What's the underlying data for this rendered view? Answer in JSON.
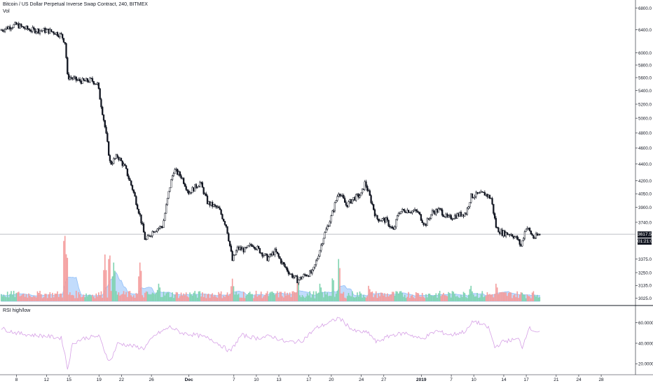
{
  "header": {
    "symbol_title": "Bitcoin / US Dollar Perpetual Inverse Swap Contract, 240, BITMEX",
    "volume_label": "Vol",
    "rsi_label": "RSI high/low"
  },
  "price_tags": {
    "last_price": "3617.5",
    "countdown": "01:21:07"
  },
  "colors": {
    "candle": "#131722",
    "vol_up": "#7fd3b0",
    "vol_down": "#f49c9c",
    "vol_ma": "#90bff9",
    "rsi_line": "#d6a0e6",
    "price_line": "#9598a1",
    "axis_text": "#131722",
    "separator": "#131722"
  },
  "chart_data": [
    {
      "type": "candlestick",
      "name": "price",
      "y_scale": "log",
      "ylim": [
        3000,
        6900
      ],
      "y_ticks": [
        "6800.0",
        "6400.0",
        "6000.0",
        "5800.0",
        "5600.0",
        "5400.0",
        "5200.0",
        "5000.0",
        "4800.0",
        "4600.0",
        "4400.0",
        "4200.0",
        "4050.0",
        "3900.0",
        "3740.0",
        "3617.5",
        "3375.0",
        "3250.0",
        "3135.0",
        "3025.0"
      ],
      "x_ticks": [
        {
          "day": 8,
          "label": "8"
        },
        {
          "day": 12,
          "label": "12"
        },
        {
          "day": 15,
          "label": "15"
        },
        {
          "day": 19,
          "label": "19"
        },
        {
          "day": 22,
          "label": "22"
        },
        {
          "day": 26,
          "label": "26"
        },
        {
          "day": 31,
          "label": "Dec"
        },
        {
          "day": 37,
          "label": "7"
        },
        {
          "day": 40,
          "label": "10"
        },
        {
          "day": 43,
          "label": "13"
        },
        {
          "day": 47,
          "label": "17"
        },
        {
          "day": 50,
          "label": "20"
        },
        {
          "day": 54,
          "label": "24"
        },
        {
          "day": 57,
          "label": "27"
        },
        {
          "day": 62,
          "label": "2019"
        },
        {
          "day": 66,
          "label": "7"
        },
        {
          "day": 69,
          "label": "10"
        },
        {
          "day": 73,
          "label": "14"
        },
        {
          "day": 76,
          "label": "17"
        },
        {
          "day": 80,
          "label": "21"
        },
        {
          "day": 83,
          "label": "24"
        },
        {
          "day": 86,
          "label": "28"
        }
      ],
      "xlim": [
        5.8,
        90.2
      ],
      "last_price": 3617.5,
      "anchors": [
        {
          "day": 5.8,
          "close": 6390
        },
        {
          "day": 7,
          "close": 6450
        },
        {
          "day": 8,
          "close": 6490
        },
        {
          "day": 9,
          "close": 6430
        },
        {
          "day": 10,
          "close": 6395
        },
        {
          "day": 11,
          "close": 6390
        },
        {
          "day": 12,
          "close": 6385
        },
        {
          "day": 13,
          "close": 6360
        },
        {
          "day": 14,
          "close": 6300
        },
        {
          "day": 14.5,
          "close": 6170
        },
        {
          "day": 14.8,
          "close": 5620
        },
        {
          "day": 16,
          "close": 5560
        },
        {
          "day": 17,
          "close": 5540
        },
        {
          "day": 18,
          "close": 5560
        },
        {
          "day": 18.8,
          "close": 5500
        },
        {
          "day": 19.8,
          "close": 4880
        },
        {
          "day": 20.5,
          "close": 4400
        },
        {
          "day": 21.5,
          "close": 4500
        },
        {
          "day": 22.5,
          "close": 4350
        },
        {
          "day": 23.5,
          "close": 4100
        },
        {
          "day": 24.5,
          "close": 3800
        },
        {
          "day": 25.2,
          "close": 3550
        },
        {
          "day": 26.3,
          "close": 3660
        },
        {
          "day": 27.5,
          "close": 3700
        },
        {
          "day": 28.5,
          "close": 4150
        },
        {
          "day": 29,
          "close": 4330
        },
        {
          "day": 30,
          "close": 4250
        },
        {
          "day": 31,
          "close": 4060
        },
        {
          "day": 32.5,
          "close": 4180
        },
        {
          "day": 33.5,
          "close": 3950
        },
        {
          "day": 35,
          "close": 3880
        },
        {
          "day": 36,
          "close": 3700
        },
        {
          "day": 36.8,
          "close": 3360
        },
        {
          "day": 37.5,
          "close": 3480
        },
        {
          "day": 38.5,
          "close": 3460
        },
        {
          "day": 39.5,
          "close": 3520
        },
        {
          "day": 40.5,
          "close": 3450
        },
        {
          "day": 41.5,
          "close": 3380
        },
        {
          "day": 42.5,
          "close": 3450
        },
        {
          "day": 43.5,
          "close": 3330
        },
        {
          "day": 44.5,
          "close": 3240
        },
        {
          "day": 45.5,
          "close": 3180
        },
        {
          "day": 46.5,
          "close": 3230
        },
        {
          "day": 47.5,
          "close": 3250
        },
        {
          "day": 48.2,
          "close": 3400
        },
        {
          "day": 49,
          "close": 3600
        },
        {
          "day": 50,
          "close": 3800
        },
        {
          "day": 51,
          "close": 4080
        },
        {
          "day": 52,
          "close": 3920
        },
        {
          "day": 53,
          "close": 4000
        },
        {
          "day": 54,
          "close": 4040
        },
        {
          "day": 54.5,
          "close": 4180
        },
        {
          "day": 55.5,
          "close": 3920
        },
        {
          "day": 56,
          "close": 3780
        },
        {
          "day": 57.3,
          "close": 3760
        },
        {
          "day": 58.3,
          "close": 3650
        },
        {
          "day": 59,
          "close": 3850
        },
        {
          "day": 60,
          "close": 3870
        },
        {
          "day": 61.5,
          "close": 3850
        },
        {
          "day": 62.5,
          "close": 3710
        },
        {
          "day": 63.5,
          "close": 3850
        },
        {
          "day": 64.5,
          "close": 3870
        },
        {
          "day": 65.5,
          "close": 3780
        },
        {
          "day": 67,
          "close": 3820
        },
        {
          "day": 68,
          "close": 3840
        },
        {
          "day": 68.6,
          "close": 4020
        },
        {
          "day": 69.5,
          "close": 4040
        },
        {
          "day": 70.5,
          "close": 4050
        },
        {
          "day": 71.3,
          "close": 4000
        },
        {
          "day": 72,
          "close": 3680
        },
        {
          "day": 72.8,
          "close": 3630
        },
        {
          "day": 74,
          "close": 3620
        },
        {
          "day": 74.8,
          "close": 3570
        },
        {
          "day": 75.3,
          "close": 3500
        },
        {
          "day": 76,
          "close": 3700
        },
        {
          "day": 77,
          "close": 3580
        },
        {
          "day": 77.8,
          "close": 3617.5
        }
      ]
    },
    {
      "type": "bar",
      "name": "volume",
      "spikes": [
        {
          "day": 14.4,
          "rel": 1.0
        },
        {
          "day": 14.7,
          "rel": 0.72
        },
        {
          "day": 19.8,
          "rel": 0.62
        },
        {
          "day": 20.4,
          "rel": 0.7
        },
        {
          "day": 21.0,
          "rel": 0.55
        },
        {
          "day": 24.5,
          "rel": 0.55
        },
        {
          "day": 27.0,
          "rel": 0.25
        },
        {
          "day": 36.8,
          "rel": 0.3
        },
        {
          "day": 45.5,
          "rel": 0.35
        },
        {
          "day": 48.5,
          "rel": 0.25
        },
        {
          "day": 50.2,
          "rel": 0.35
        },
        {
          "day": 51.0,
          "rel": 0.6
        },
        {
          "day": 55.0,
          "rel": 0.22
        },
        {
          "day": 68.6,
          "rel": 0.22
        },
        {
          "day": 72.0,
          "rel": 0.25
        }
      ]
    },
    {
      "type": "line",
      "name": "rsi",
      "ylim": [
        10,
        70
      ],
      "y_ticks": [
        "60.0000",
        "40.0000",
        "20.0000"
      ],
      "anchors": [
        {
          "day": 5.8,
          "value": 55
        },
        {
          "day": 8,
          "value": 50
        },
        {
          "day": 10,
          "value": 48
        },
        {
          "day": 12,
          "value": 47
        },
        {
          "day": 14,
          "value": 45
        },
        {
          "day": 14.5,
          "value": 28
        },
        {
          "day": 14.8,
          "value": 15
        },
        {
          "day": 15.5,
          "value": 40
        },
        {
          "day": 17,
          "value": 45
        },
        {
          "day": 19,
          "value": 47
        },
        {
          "day": 20,
          "value": 28
        },
        {
          "day": 20.5,
          "value": 22
        },
        {
          "day": 21.5,
          "value": 40
        },
        {
          "day": 23,
          "value": 38
        },
        {
          "day": 25,
          "value": 35
        },
        {
          "day": 26.5,
          "value": 48
        },
        {
          "day": 28.5,
          "value": 56
        },
        {
          "day": 30,
          "value": 50
        },
        {
          "day": 32,
          "value": 48
        },
        {
          "day": 34,
          "value": 44
        },
        {
          "day": 36.5,
          "value": 32
        },
        {
          "day": 38,
          "value": 48
        },
        {
          "day": 40,
          "value": 45
        },
        {
          "day": 42,
          "value": 47
        },
        {
          "day": 44,
          "value": 41
        },
        {
          "day": 46,
          "value": 42
        },
        {
          "day": 48,
          "value": 55
        },
        {
          "day": 50,
          "value": 61
        },
        {
          "day": 51,
          "value": 65
        },
        {
          "day": 53,
          "value": 52
        },
        {
          "day": 55,
          "value": 50
        },
        {
          "day": 56,
          "value": 41
        },
        {
          "day": 58,
          "value": 48
        },
        {
          "day": 60,
          "value": 50
        },
        {
          "day": 62,
          "value": 44
        },
        {
          "day": 64,
          "value": 52
        },
        {
          "day": 66,
          "value": 48
        },
        {
          "day": 68,
          "value": 52
        },
        {
          "day": 69,
          "value": 62
        },
        {
          "day": 71,
          "value": 55
        },
        {
          "day": 71.8,
          "value": 36
        },
        {
          "day": 73,
          "value": 42
        },
        {
          "day": 75,
          "value": 44
        },
        {
          "day": 75.5,
          "value": 36
        },
        {
          "day": 76.3,
          "value": 55
        },
        {
          "day": 77.8,
          "value": 50
        }
      ]
    }
  ]
}
